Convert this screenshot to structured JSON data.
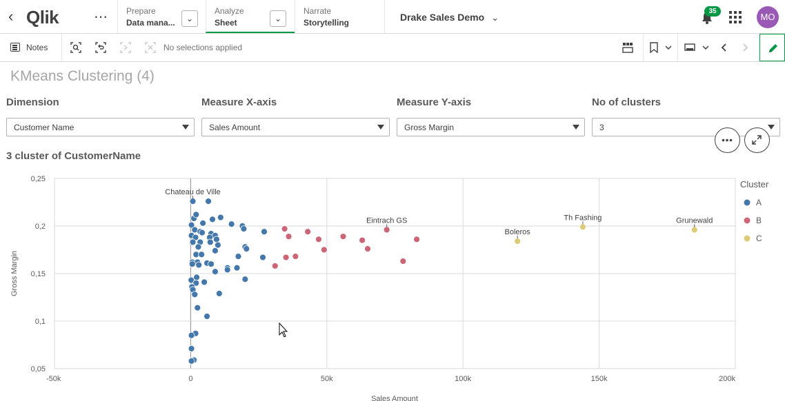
{
  "topbar": {
    "logo_text": "Qlik",
    "prepare": {
      "label": "Prepare",
      "sub": "Data mana..."
    },
    "analyze": {
      "label": "Analyze",
      "sub": "Sheet"
    },
    "narrate": {
      "label": "Narrate",
      "sub": "Storytelling"
    },
    "app_title": "Drake Sales Demo",
    "notification_count": "35",
    "avatar_initials": "MO",
    "icons": [
      "back-icon",
      "more-icon",
      "chevron-down-icon",
      "bell-icon",
      "grid-menu-icon"
    ]
  },
  "toolbar": {
    "notes_label": "Notes",
    "selection_status": "No selections applied",
    "icons": [
      "notes-icon",
      "smart-search-icon",
      "selections-tool-icon",
      "step-back-icon",
      "clear-selections-icon",
      "sheets-icon",
      "bookmark-icon",
      "present-icon",
      "previous-icon",
      "next-icon",
      "edit-icon"
    ]
  },
  "sheet": {
    "title": "KMeans Clustering (4)",
    "filters": [
      {
        "label": "Dimension",
        "value": "Customer Name"
      },
      {
        "label": "Measure X-axis",
        "value": "Sales Amount"
      },
      {
        "label": "Measure Y-axis",
        "value": "Gross Margin"
      },
      {
        "label": "No of clusters",
        "value": "3"
      }
    ],
    "chart_title": "3 cluster of CustomerName"
  },
  "colors": {
    "A": "#4477aa",
    "B": "#cc6677",
    "C": "#ddcc77",
    "accent": "#009845"
  },
  "chart_data": {
    "type": "scatter",
    "title": "3 cluster of CustomerName",
    "xlabel": "Sales Amount",
    "ylabel": "Gross Margin",
    "xlim": [
      -50000,
      200000
    ],
    "ylim": [
      0.05,
      0.25
    ],
    "x_ticks": [
      -50000,
      0,
      50000,
      100000,
      150000,
      200000
    ],
    "x_tick_labels": [
      "-50k",
      "0",
      "50k",
      "100k",
      "150k",
      "200k"
    ],
    "y_ticks": [
      0.05,
      0.1,
      0.15,
      0.2,
      0.25
    ],
    "y_tick_labels": [
      "0,05",
      "0,1",
      "0,15",
      "0,2",
      "0,25"
    ],
    "grid": true,
    "legend_title": "Cluster",
    "legend_position": "right",
    "series": [
      {
        "name": "A",
        "color": "#4477aa",
        "points": [
          [
            800,
            0.226
          ],
          [
            6500,
            0.226
          ],
          [
            1200,
            0.208
          ],
          [
            8000,
            0.207
          ],
          [
            11000,
            0.209
          ],
          [
            2000,
            0.212
          ],
          [
            300,
            0.201
          ],
          [
            4500,
            0.203
          ],
          [
            15000,
            0.202
          ],
          [
            19000,
            0.2
          ],
          [
            19500,
            0.197
          ],
          [
            27000,
            0.194
          ],
          [
            1500,
            0.196
          ],
          [
            3500,
            0.194
          ],
          [
            4200,
            0.193
          ],
          [
            7500,
            0.192
          ],
          [
            9000,
            0.19
          ],
          [
            300,
            0.19
          ],
          [
            1800,
            0.188
          ],
          [
            7000,
            0.188
          ],
          [
            9500,
            0.186
          ],
          [
            800,
            0.183
          ],
          [
            3500,
            0.183
          ],
          [
            7200,
            0.183
          ],
          [
            10000,
            0.18
          ],
          [
            20000,
            0.178
          ],
          [
            2800,
            0.178
          ],
          [
            20500,
            0.176
          ],
          [
            9000,
            0.174
          ],
          [
            2000,
            0.17
          ],
          [
            4000,
            0.17
          ],
          [
            17500,
            0.168
          ],
          [
            26500,
            0.167
          ],
          [
            600,
            0.162
          ],
          [
            2500,
            0.162
          ],
          [
            6000,
            0.161
          ],
          [
            7500,
            0.16
          ],
          [
            3000,
            0.159
          ],
          [
            600,
            0.16
          ],
          [
            13500,
            0.156
          ],
          [
            17000,
            0.156
          ],
          [
            13500,
            0.154
          ],
          [
            9000,
            0.152
          ],
          [
            2200,
            0.146
          ],
          [
            20000,
            0.144
          ],
          [
            200,
            0.143
          ],
          [
            5000,
            0.141
          ],
          [
            2000,
            0.14
          ],
          [
            500,
            0.136
          ],
          [
            800,
            0.133
          ],
          [
            1500,
            0.128
          ],
          [
            10500,
            0.129
          ],
          [
            2500,
            0.114
          ],
          [
            6000,
            0.105
          ],
          [
            1800,
            0.087
          ],
          [
            300,
            0.085
          ],
          [
            300,
            0.071
          ],
          [
            1200,
            0.059
          ],
          [
            300,
            0.058
          ]
        ]
      },
      {
        "name": "B",
        "color": "#cc6677",
        "points": [
          [
            34500,
            0.197
          ],
          [
            72000,
            0.196
          ],
          [
            43000,
            0.194
          ],
          [
            36000,
            0.189
          ],
          [
            56000,
            0.189
          ],
          [
            47000,
            0.186
          ],
          [
            63000,
            0.185
          ],
          [
            83000,
            0.186
          ],
          [
            65000,
            0.176
          ],
          [
            49000,
            0.175
          ],
          [
            38500,
            0.168
          ],
          [
            35000,
            0.167
          ],
          [
            78000,
            0.163
          ],
          [
            31000,
            0.158
          ]
        ]
      },
      {
        "name": "C",
        "color": "#ddcc77",
        "points": [
          [
            120000,
            0.184
          ],
          [
            144000,
            0.199
          ],
          [
            185000,
            0.196
          ]
        ]
      }
    ],
    "annotations": [
      {
        "text": "Chateau de Ville",
        "x": 800,
        "y": 0.226
      },
      {
        "text": "Eintrach GS",
        "x": 72000,
        "y": 0.196
      },
      {
        "text": "Boleros",
        "x": 120000,
        "y": 0.184
      },
      {
        "text": "Th Fashing",
        "x": 144000,
        "y": 0.199
      },
      {
        "text": "Grunewald",
        "x": 185000,
        "y": 0.196
      }
    ]
  }
}
